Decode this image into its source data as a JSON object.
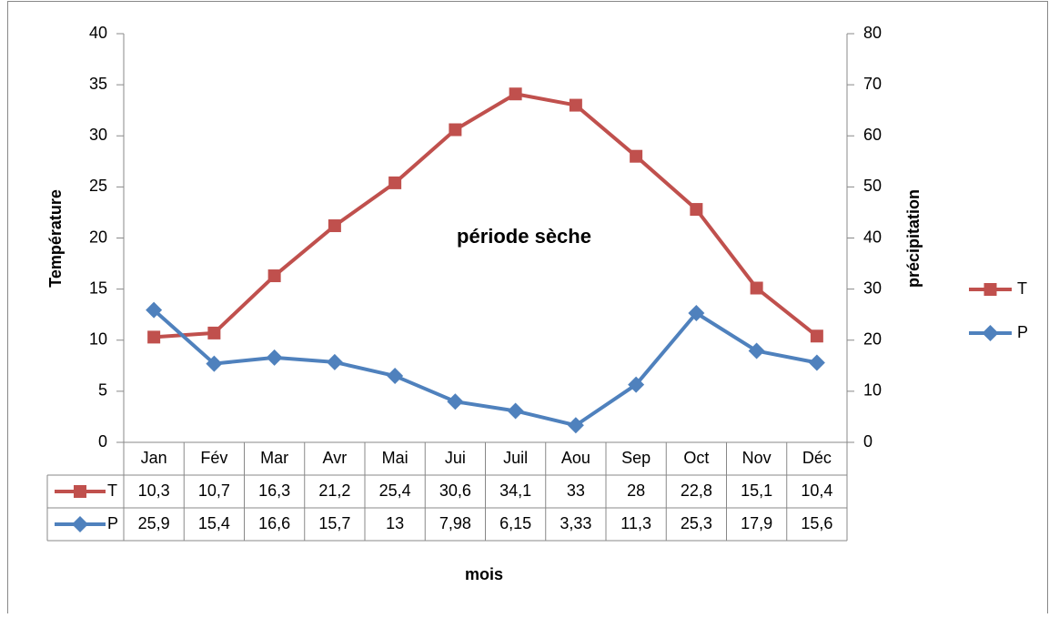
{
  "chart_data": {
    "type": "line",
    "annotation": "période sèche",
    "x_label": "mois",
    "y_label": "Température",
    "y2_label": "précipitation",
    "categories": [
      "Jan",
      "Fév",
      "Mar",
      "Avr",
      "Mai",
      "Jui",
      "Juil",
      "Aou",
      "Sep",
      "Oct",
      "Nov",
      "Déc"
    ],
    "series": [
      {
        "name": "T",
        "color": "#c0504d",
        "marker": "square",
        "axis": "y",
        "values": [
          10.3,
          10.7,
          16.3,
          21.2,
          25.4,
          30.6,
          34.1,
          33,
          28,
          22.8,
          15.1,
          10.4
        ],
        "value_labels": [
          "10,3",
          "10,7",
          "16,3",
          "21,2",
          "25,4",
          "30,6",
          "34,1",
          "33",
          "28",
          "22,8",
          "15,1",
          "10,4"
        ]
      },
      {
        "name": "P",
        "color": "#4f81bd",
        "marker": "diamond",
        "axis": "y2",
        "values": [
          25.9,
          15.4,
          16.6,
          15.7,
          13,
          7.98,
          6.15,
          3.33,
          11.3,
          25.3,
          17.9,
          15.6
        ],
        "value_labels": [
          "25,9",
          "15,4",
          "16,6",
          "15,7",
          "13",
          "7,98",
          "6,15",
          "3,33",
          "11,3",
          "25,3",
          "17,9",
          "15,6"
        ]
      }
    ],
    "ylim": [
      0,
      40
    ],
    "yticks": [
      0,
      5,
      10,
      15,
      20,
      25,
      30,
      35,
      40
    ],
    "y2lim": [
      0,
      80
    ],
    "y2ticks": [
      0,
      10,
      20,
      30,
      40,
      50,
      60,
      70,
      80
    ],
    "grid": false,
    "legend": "right",
    "data_table": true
  }
}
